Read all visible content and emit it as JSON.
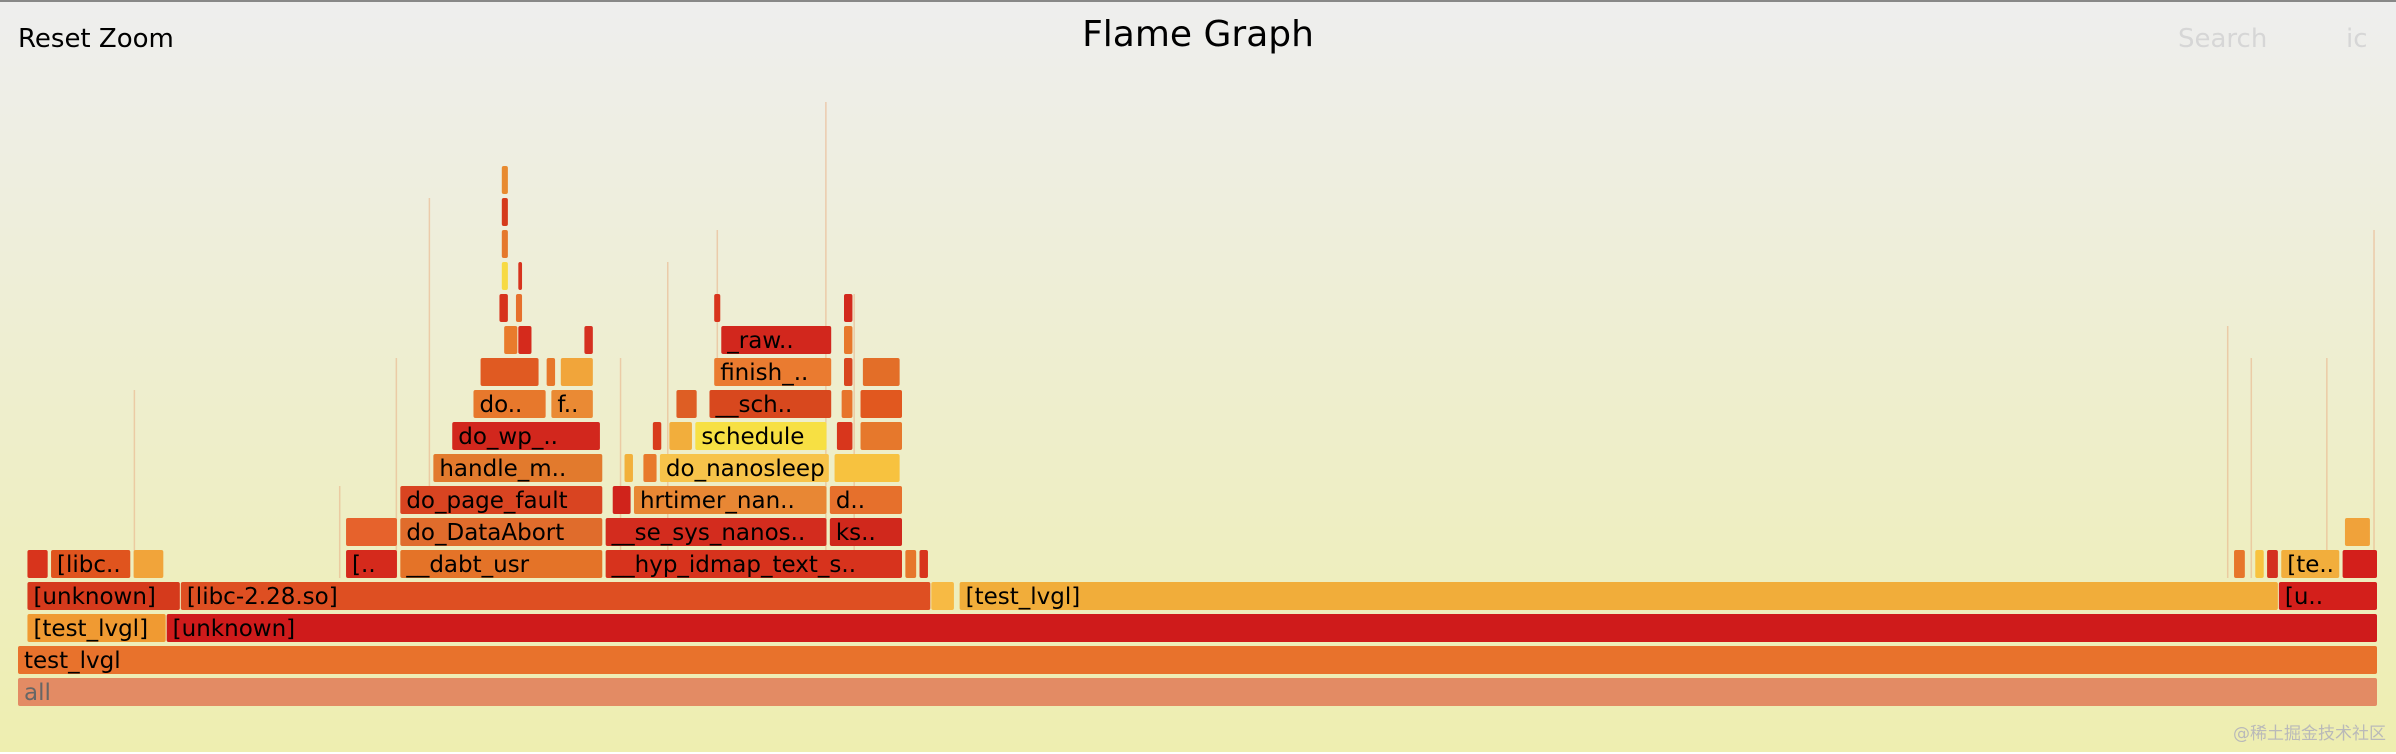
{
  "header": {
    "reset_zoom": "Reset Zoom",
    "title": "Flame Graph",
    "search": "Search",
    "ic": "ic"
  },
  "watermark": "@稀土掘金技术社区",
  "chart_data": {
    "type": "flame",
    "title": "Flame Graph",
    "total_samples": 100,
    "frames": [
      {
        "name": "all",
        "label": "all",
        "depth": 0,
        "start": 0,
        "width": 100,
        "color": "#e38b64"
      },
      {
        "name": "test_lvgl",
        "label": "test_lvgl",
        "depth": 1,
        "start": 0,
        "width": 100,
        "color": "#e8722c"
      },
      {
        "name": "[test_lvgl]",
        "label": "[test_lvgl]",
        "depth": 2,
        "start": 0.4,
        "width": 5.9,
        "color": "#f09a32"
      },
      {
        "name": "[unknown]",
        "label": "[unknown]",
        "depth": 2,
        "start": 6.3,
        "width": 93.7,
        "color": "#cf1b1b"
      },
      {
        "name": "[unknown]",
        "label": "[unknown]",
        "depth": 3,
        "start": 0.4,
        "width": 6.5,
        "color": "#d53a1c"
      },
      {
        "name": "[libc-2.28.so]",
        "label": "[libc-2.28.so]",
        "depth": 3,
        "start": 6.9,
        "width": 31.8,
        "color": "#de4f22"
      },
      {
        "name": "",
        "label": "",
        "depth": 3,
        "start": 38.7,
        "width": 1.0,
        "color": "#f7ba44"
      },
      {
        "name": "[test_lvgl]",
        "label": "[test_lvgl]",
        "depth": 3,
        "start": 39.9,
        "width": 55.9,
        "color": "#f1ad3a"
      },
      {
        "name": "[unknown]",
        "label": "[u..",
        "depth": 3,
        "start": 95.8,
        "width": 4.2,
        "color": "#d31f1b"
      },
      {
        "name": "",
        "label": "",
        "depth": 4,
        "start": 0.4,
        "width": 0.9,
        "color": "#d8341c"
      },
      {
        "name": "[libc-2.28.so]",
        "label": "[libc..",
        "depth": 4,
        "start": 1.4,
        "width": 3.4,
        "color": "#e0541e"
      },
      {
        "name": "",
        "label": "",
        "depth": 4,
        "start": 4.9,
        "width": 1.3,
        "color": "#f1a43a"
      },
      {
        "name": "[libc-2.28.so]",
        "label": "[..",
        "depth": 4,
        "start": 13.9,
        "width": 2.2,
        "color": "#d52a1c"
      },
      {
        "name": "__dabt_usr",
        "label": "__dabt_usr",
        "depth": 4,
        "start": 16.2,
        "width": 8.6,
        "color": "#e47328"
      },
      {
        "name": "__hyp_idmap_text_start",
        "label": "__hyp_idmap_text_s..",
        "depth": 4,
        "start": 24.9,
        "width": 12.6,
        "color": "#d7331d"
      },
      {
        "name": "",
        "label": "",
        "depth": 4,
        "start": 37.6,
        "width": 0.5,
        "color": "#e6772b"
      },
      {
        "name": "",
        "label": "",
        "depth": 4,
        "start": 38.2,
        "width": 0.4,
        "color": "#d8341c"
      },
      {
        "name": "",
        "label": "",
        "depth": 4,
        "start": 93.9,
        "width": 0.5,
        "color": "#e7762a"
      },
      {
        "name": "",
        "label": "",
        "depth": 4,
        "start": 94.8,
        "width": 0.4,
        "color": "#f8c33f"
      },
      {
        "name": "",
        "label": "",
        "depth": 4,
        "start": 95.3,
        "width": 0.5,
        "color": "#d43020"
      },
      {
        "name": "[test_lvgl]",
        "label": "[te..",
        "depth": 4,
        "start": 95.9,
        "width": 2.5,
        "color": "#f2ae3c"
      },
      {
        "name": "",
        "label": "",
        "depth": 4,
        "start": 98.5,
        "width": 1.5,
        "color": "#d31f1b"
      },
      {
        "name": "",
        "label": "",
        "depth": 5,
        "start": 13.9,
        "width": 2.2,
        "color": "#e6622c"
      },
      {
        "name": "do_DataAbort",
        "label": "do_DataAbort",
        "depth": 5,
        "start": 16.2,
        "width": 8.6,
        "color": "#e06c2c"
      },
      {
        "name": "__se_sys_nanosleep",
        "label": "__se_sys_nanos..",
        "depth": 5,
        "start": 24.9,
        "width": 9.4,
        "color": "#d32c1e"
      },
      {
        "name": "ks",
        "label": "ks..",
        "depth": 5,
        "start": 34.4,
        "width": 3.1,
        "color": "#d0281c"
      },
      {
        "name": "",
        "label": "",
        "depth": 5,
        "start": 98.6,
        "width": 1.1,
        "color": "#f0a23a"
      },
      {
        "name": "do_page_fault",
        "label": "do_page_fault",
        "depth": 6,
        "start": 16.2,
        "width": 8.6,
        "color": "#d94421"
      },
      {
        "name": "",
        "label": "",
        "depth": 6,
        "start": 25.2,
        "width": 0.8,
        "color": "#d0231b"
      },
      {
        "name": "hrtimer_nanosleep",
        "label": "hrtimer_nan..",
        "depth": 6,
        "start": 26.1,
        "width": 8.2,
        "color": "#e88734"
      },
      {
        "name": "d",
        "label": "d..",
        "depth": 6,
        "start": 34.4,
        "width": 3.1,
        "color": "#e6702c"
      },
      {
        "name": "handle_mm_fault",
        "label": "handle_m..",
        "depth": 7,
        "start": 17.6,
        "width": 7.2,
        "color": "#e27a2d"
      },
      {
        "name": "",
        "label": "",
        "depth": 7,
        "start": 25.7,
        "width": 0.4,
        "color": "#f2b03a"
      },
      {
        "name": "",
        "label": "",
        "depth": 7,
        "start": 26.5,
        "width": 0.6,
        "color": "#e8792c"
      },
      {
        "name": "do_nanosleep",
        "label": "do_nanosleep",
        "depth": 7,
        "start": 27.2,
        "width": 7.2,
        "color": "#f7c34a"
      },
      {
        "name": "",
        "label": "",
        "depth": 7,
        "start": 34.6,
        "width": 2.8,
        "color": "#f7c23f"
      },
      {
        "name": "do_wp_page",
        "label": "do_wp_..",
        "depth": 8,
        "start": 18.4,
        "width": 6.3,
        "color": "#d2271d"
      },
      {
        "name": "",
        "label": "",
        "depth": 8,
        "start": 26.9,
        "width": 0.4,
        "color": "#d83b1c"
      },
      {
        "name": "",
        "label": "",
        "depth": 8,
        "start": 27.6,
        "width": 1.0,
        "color": "#f2ae3c"
      },
      {
        "name": "schedule",
        "label": "schedule",
        "depth": 8,
        "start": 28.7,
        "width": 5.6,
        "color": "#f7e043"
      },
      {
        "name": "",
        "label": "",
        "depth": 8,
        "start": 34.7,
        "width": 0.7,
        "color": "#d8361c"
      },
      {
        "name": "",
        "label": "",
        "depth": 8,
        "start": 35.7,
        "width": 1.8,
        "color": "#e6782c"
      },
      {
        "name": "do",
        "label": "do..",
        "depth": 9,
        "start": 19.3,
        "width": 3.1,
        "color": "#e7782c"
      },
      {
        "name": "f",
        "label": "f..",
        "depth": 9,
        "start": 22.6,
        "width": 1.8,
        "color": "#ea8a34"
      },
      {
        "name": "",
        "label": "",
        "depth": 9,
        "start": 27.9,
        "width": 0.9,
        "color": "#de5e24"
      },
      {
        "name": "__schedule",
        "label": "__sch..",
        "depth": 9,
        "start": 29.3,
        "width": 5.2,
        "color": "#d8481e"
      },
      {
        "name": "",
        "label": "",
        "depth": 9,
        "start": 34.9,
        "width": 0.5,
        "color": "#e7742c"
      },
      {
        "name": "",
        "label": "",
        "depth": 9,
        "start": 35.7,
        "width": 1.8,
        "color": "#e1581f"
      },
      {
        "name": "",
        "label": "",
        "depth": 10,
        "start": 19.6,
        "width": 2.5,
        "color": "#e05a22"
      },
      {
        "name": "",
        "label": "",
        "depth": 10,
        "start": 22.4,
        "width": 0.4,
        "color": "#e7772a"
      },
      {
        "name": "",
        "label": "",
        "depth": 10,
        "start": 23.0,
        "width": 1.4,
        "color": "#f1a53a"
      },
      {
        "name": "finish_task_switch",
        "label": "finish_..",
        "depth": 10,
        "start": 29.5,
        "width": 5.0,
        "color": "#ea7b30"
      },
      {
        "name": "",
        "label": "",
        "depth": 10,
        "start": 35.0,
        "width": 0.4,
        "color": "#d8451f"
      },
      {
        "name": "",
        "label": "",
        "depth": 10,
        "start": 35.8,
        "width": 1.6,
        "color": "#e36e28"
      },
      {
        "name": "",
        "label": "",
        "depth": 11,
        "start": 20.6,
        "width": 0.6,
        "color": "#e97b2c"
      },
      {
        "name": "",
        "label": "",
        "depth": 11,
        "start": 21.2,
        "width": 0.6,
        "color": "#d52a1c"
      },
      {
        "name": "",
        "label": "",
        "depth": 11,
        "start": 24.0,
        "width": 0.4,
        "color": "#d53020"
      },
      {
        "name": "_raw_spin_unlock_irq",
        "label": "_raw..",
        "depth": 11,
        "start": 29.8,
        "width": 4.7,
        "color": "#d2271d"
      },
      {
        "name": "",
        "label": "",
        "depth": 11,
        "start": 35.0,
        "width": 0.4,
        "color": "#e7782c"
      },
      {
        "name": "",
        "label": "",
        "depth": 12,
        "start": 20.4,
        "width": 0.4,
        "color": "#d7331d"
      },
      {
        "name": "",
        "label": "",
        "depth": 12,
        "start": 21.1,
        "width": 0.3,
        "color": "#e6702c"
      },
      {
        "name": "",
        "label": "",
        "depth": 12,
        "start": 29.5,
        "width": 0.3,
        "color": "#d8341c"
      },
      {
        "name": "",
        "label": "",
        "depth": 12,
        "start": 35.0,
        "width": 0.4,
        "color": "#d2291d"
      },
      {
        "name": "",
        "label": "",
        "depth": 13,
        "start": 20.5,
        "width": 0.3,
        "color": "#f7da43"
      },
      {
        "name": "",
        "label": "",
        "depth": 13,
        "start": 21.2,
        "width": 0.2,
        "color": "#d7331d"
      },
      {
        "name": "",
        "label": "",
        "depth": 14,
        "start": 20.5,
        "width": 0.3,
        "color": "#e5782c"
      },
      {
        "name": "",
        "label": "",
        "depth": 15,
        "start": 20.5,
        "width": 0.3,
        "color": "#d53a1c"
      },
      {
        "name": "",
        "label": "",
        "depth": 16,
        "start": 20.5,
        "width": 0.3,
        "color": "#e88a30"
      }
    ],
    "slivers": [
      {
        "x": 4.9,
        "depth_from": 4,
        "depth_to": 9
      },
      {
        "x": 13.6,
        "depth_from": 4,
        "depth_to": 6
      },
      {
        "x": 16.0,
        "depth_from": 4,
        "depth_to": 10
      },
      {
        "x": 17.4,
        "depth_from": 6,
        "depth_to": 15
      },
      {
        "x": 25.5,
        "depth_from": 4,
        "depth_to": 10
      },
      {
        "x": 27.5,
        "depth_from": 4,
        "depth_to": 13
      },
      {
        "x": 29.6,
        "depth_from": 10,
        "depth_to": 14
      },
      {
        "x": 34.2,
        "depth_from": 4,
        "depth_to": 18
      },
      {
        "x": 35.4,
        "depth_from": 4,
        "depth_to": 12
      },
      {
        "x": 93.6,
        "depth_from": 4,
        "depth_to": 11
      },
      {
        "x": 94.6,
        "depth_from": 4,
        "depth_to": 10
      },
      {
        "x": 97.8,
        "depth_from": 4,
        "depth_to": 10
      },
      {
        "x": 99.8,
        "depth_from": 4,
        "depth_to": 14
      }
    ]
  }
}
